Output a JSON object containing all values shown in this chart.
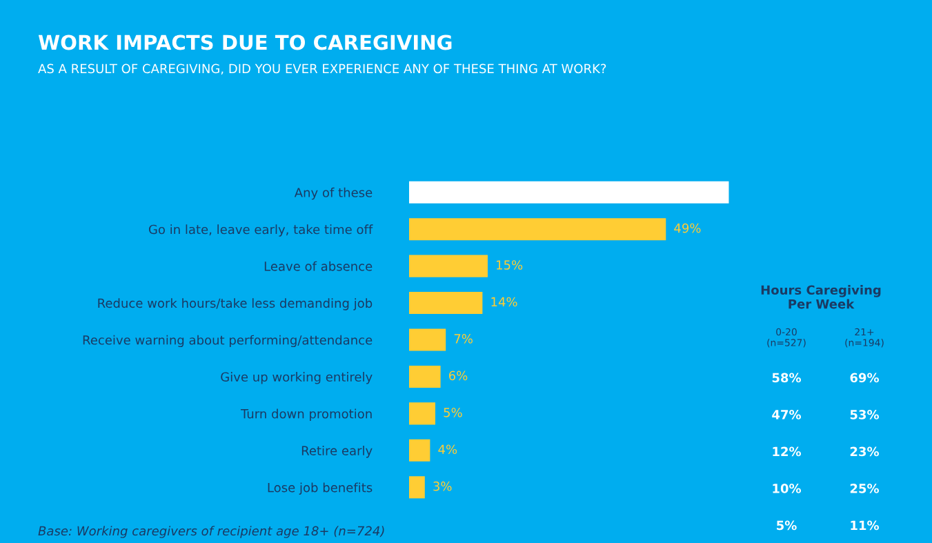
{
  "chart_data": [
    {
      "type": "bar",
      "orientation": "horizontal",
      "title": "WORK IMPACTS DUE TO CAREGIVING",
      "subtitle": "AS A RESULT OF CAREGIVING, DID YOU EVER EXPERIENCE ANY OF THESE THING AT WORK?",
      "categories": [
        "Any of these",
        "Go in late, leave early, take time off",
        "Leave of absence",
        "Reduce work hours/take less demanding job",
        "Receive warning about performing/attendance",
        "Give up working entirely",
        "Turn down promotion",
        "Retire early",
        "Lose job benefits"
      ],
      "values": [
        61,
        49,
        15,
        14,
        7,
        6,
        5,
        4,
        3
      ],
      "colors": [
        "#ffffff",
        "#ffcd34",
        "#ffcd34",
        "#ffcd34",
        "#ffcd34",
        "#ffcd34",
        "#ffcd34",
        "#ffcd34",
        "#ffcd34"
      ],
      "value_labels": [
        null,
        "49%",
        "15%",
        "14%",
        "7%",
        "6%",
        "5%",
        "4%",
        "3%"
      ],
      "annotations": [
        "Base: Working caregivers of recipient age 18+ (n=724)"
      ]
    },
    {
      "type": "other",
      "title": "Hours Caregiving\nPer Week",
      "categories": [
        "0-20\n(n=527)",
        "21+\n(n=194)"
      ],
      "series": [
        {
          "values": [
            58,
            69
          ],
          "value_labels": [
            "58%",
            "69%"
          ]
        },
        {
          "values": [
            47,
            53
          ],
          "value_labels": [
            "47%",
            "53%"
          ]
        },
        {
          "values": [
            12,
            23
          ],
          "value_labels": [
            "12%",
            "23%"
          ]
        },
        {
          "values": [
            10,
            25
          ],
          "value_labels": [
            "10%",
            "25%"
          ]
        },
        {
          "values": [
            5,
            11
          ],
          "value_labels": [
            "5%",
            "11%"
          ]
        }
      ]
    }
  ]
}
